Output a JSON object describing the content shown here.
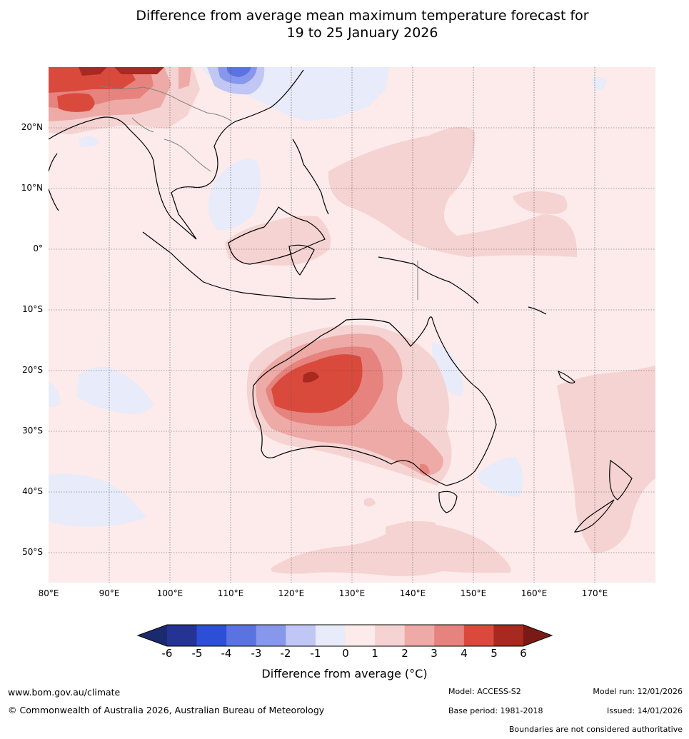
{
  "title": {
    "line1": "Difference from average mean maximum temperature forecast for",
    "line2": "19 to 25 January 2026"
  },
  "map": {
    "region": "Australia, Indonesia, Southeast Asia and South-West Pacific",
    "lon_range": [
      80,
      180
    ],
    "lat_range": [
      -55,
      30
    ],
    "lat_labels": [
      "20°N",
      "10°N",
      "0°",
      "10°S",
      "20°S",
      "30°S",
      "40°S",
      "50°S"
    ],
    "lon_labels": [
      "80°E",
      "90°E",
      "100°E",
      "110°E",
      "120°E",
      "130°E",
      "140°E",
      "150°E",
      "160°E",
      "170°E"
    ]
  },
  "colorbar": {
    "labels": [
      "-6",
      "-5",
      "-4",
      "-3",
      "-2",
      "-1",
      "0",
      "1",
      "2",
      "3",
      "4",
      "5",
      "6"
    ],
    "colors": [
      "#253494",
      "#2c4fd6",
      "#5a73e0",
      "#8797eb",
      "#c0c7f4",
      "#e7ebfa",
      "#fcebea",
      "#f5d3d2",
      "#eeaaa6",
      "#e6837e",
      "#d94a3d",
      "#a8291f"
    ],
    "under_color": "#1b2a6e",
    "over_color": "#7a1a14",
    "title": "Difference from average (°C)"
  },
  "footer": {
    "website": "www.bom.gov.au/climate",
    "copyright": "© Commonwealth of Australia 2026, Australian Bureau of Meteorology",
    "model": "Model: ACCESS-S2",
    "base_period": "Base period: 1981-2018",
    "model_run": "Model run: 12/01/2026",
    "issued": "Issued: 14/01/2026",
    "disclaimer": "Boundaries are not considered authoritative"
  }
}
